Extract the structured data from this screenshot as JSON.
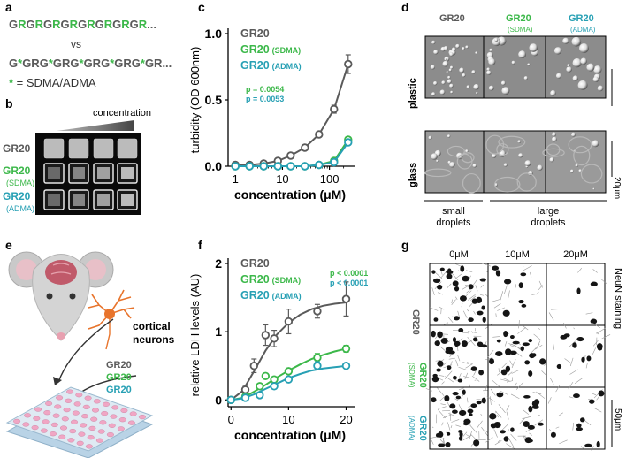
{
  "colors": {
    "gr20": "#5a5a5a",
    "sdma": "#3cb84a",
    "adma": "#27a0b4",
    "brain": "#c05a6a",
    "neuron": "#e8742c",
    "plate": "#f0a6c4"
  },
  "panel_a": {
    "letter": "a",
    "seq1_parts": [
      {
        "t": "G",
        "c": "gr20"
      },
      {
        "t": "R",
        "c": "sdma"
      },
      {
        "t": "G",
        "c": "gr20"
      },
      {
        "t": "R",
        "c": "sdma"
      },
      {
        "t": "G",
        "c": "gr20"
      },
      {
        "t": "R",
        "c": "sdma"
      },
      {
        "t": "G",
        "c": "gr20"
      },
      {
        "t": "R",
        "c": "sdma"
      },
      {
        "t": "G",
        "c": "gr20"
      },
      {
        "t": "R",
        "c": "sdma"
      },
      {
        "t": "G",
        "c": "gr20"
      },
      {
        "t": "R",
        "c": "sdma"
      },
      {
        "t": "G",
        "c": "gr20"
      },
      {
        "t": "R",
        "c": "sdma"
      },
      {
        "t": "G",
        "c": "gr20"
      },
      {
        "t": "R",
        "c": "sdma"
      },
      {
        "t": "...",
        "c": "gr20"
      }
    ],
    "vs": "vs",
    "seq2_parts": [
      {
        "t": "G",
        "c": "gr20"
      },
      {
        "t": "*",
        "c": "sdma"
      },
      {
        "t": "GRG",
        "c": "gr20"
      },
      {
        "t": "*",
        "c": "sdma"
      },
      {
        "t": "GRG",
        "c": "gr20"
      },
      {
        "t": "*",
        "c": "sdma"
      },
      {
        "t": "GRG",
        "c": "gr20"
      },
      {
        "t": "*",
        "c": "sdma"
      },
      {
        "t": "GRG",
        "c": "gr20"
      },
      {
        "t": "*",
        "c": "sdma"
      },
      {
        "t": "GR...",
        "c": "gr20"
      }
    ],
    "legend_star": "*",
    "legend_text": " = SDMA/ADMA"
  },
  "panel_b": {
    "letter": "b",
    "concentration_label": "concentration",
    "rows": [
      {
        "name": "GR20",
        "sub": "",
        "color": "gr20"
      },
      {
        "name": "GR20",
        "sub": "(SDMA)",
        "color": "sdma"
      },
      {
        "name": "GR20",
        "sub": "(ADMA)",
        "color": "adma"
      }
    ]
  },
  "panel_c": {
    "letter": "c",
    "p_sdma": "p = 0.0054",
    "p_adma": "p = 0.0053"
  },
  "panel_d": {
    "letter": "d",
    "columns": [
      {
        "name": "GR20",
        "sub": "",
        "color": "gr20"
      },
      {
        "name": "GR20",
        "sub": "(SDMA)",
        "color": "sdma"
      },
      {
        "name": "GR20",
        "sub": "(ADMA)",
        "color": "adma"
      }
    ],
    "rows": [
      "plastic",
      "glass"
    ],
    "scale": "20μm",
    "bottom_left": [
      "small",
      "droplets"
    ],
    "bottom_right": [
      "large",
      "droplets"
    ]
  },
  "panel_e": {
    "letter": "e",
    "neurons_label": [
      "cortical",
      "neurons"
    ],
    "labels": [
      {
        "name": "GR20",
        "color": "gr20"
      },
      {
        "name": "GR20",
        "color": "sdma"
      },
      {
        "name": "GR20",
        "color": "adma"
      }
    ]
  },
  "panel_f": {
    "letter": "f",
    "p_sdma": "p < 0.0001",
    "p_adma": "p < 0.0001"
  },
  "panel_g": {
    "letter": "g",
    "columns": [
      "0μM",
      "10μM",
      "20μM"
    ],
    "rows": [
      {
        "name": "GR20",
        "sub": "",
        "color": "gr20"
      },
      {
        "name": "GR20",
        "sub": "(SDMA)",
        "color": "sdma"
      },
      {
        "name": "GR20",
        "sub": "(ADMA)",
        "color": "adma"
      }
    ],
    "stain": "NeuN staining",
    "scale": "50μm"
  },
  "chart_data": [
    {
      "type": "line",
      "panel": "c",
      "title": "",
      "xlabel": "concentration (μM)",
      "ylabel": "turbidity (OD 600nm)",
      "xscale": "log",
      "xlim": [
        0.7,
        300
      ],
      "ylim": [
        0,
        1.0
      ],
      "xticks": [
        1,
        10,
        100
      ],
      "xtick_labels": [
        "1",
        "10",
        "100"
      ],
      "yticks": [
        0,
        0.5,
        1.0
      ],
      "ytick_labels": [
        "0.0",
        "0.5",
        "1.0"
      ],
      "legend": [
        {
          "name": "GR20",
          "sub": "",
          "color": "gr20"
        },
        {
          "name": "GR20",
          "sub": "(SDMA)",
          "color": "sdma"
        },
        {
          "name": "GR20",
          "sub": "(ADMA)",
          "color": "adma"
        }
      ],
      "series": [
        {
          "name": "GR20",
          "color": "gr20",
          "x": [
            1,
            2,
            4,
            8,
            15,
            30,
            60,
            125,
            250
          ],
          "y": [
            0.01,
            0.01,
            0.02,
            0.04,
            0.08,
            0.14,
            0.24,
            0.43,
            0.77
          ],
          "err": [
            0,
            0,
            0,
            0,
            0.01,
            0.01,
            0.02,
            0.03,
            0.07
          ]
        },
        {
          "name": "GR20 (SDMA)",
          "color": "sdma",
          "x": [
            1,
            2,
            4,
            8,
            15,
            30,
            60,
            125,
            250
          ],
          "y": [
            0.0,
            0.0,
            0.0,
            0.0,
            0.0,
            0.0,
            0.01,
            0.04,
            0.2
          ],
          "err": [
            0,
            0,
            0,
            0,
            0,
            0,
            0,
            0.01,
            0.02
          ]
        },
        {
          "name": "GR20 (ADMA)",
          "color": "adma",
          "x": [
            1,
            2,
            4,
            8,
            15,
            30,
            60,
            125,
            250
          ],
          "y": [
            0.0,
            0.0,
            0.0,
            0.0,
            0.0,
            0.0,
            0.01,
            0.03,
            0.18
          ],
          "err": [
            0,
            0,
            0,
            0,
            0,
            0,
            0,
            0.01,
            0.02
          ]
        }
      ]
    },
    {
      "type": "line",
      "panel": "f",
      "title": "",
      "xlabel": "concentration (μM)",
      "ylabel": "relative LDH levels (AU)",
      "xscale": "linear",
      "xlim": [
        -0.5,
        21
      ],
      "ylim": [
        -0.1,
        2.0
      ],
      "xticks": [
        0,
        10,
        20
      ],
      "xtick_labels": [
        "0",
        "10",
        "20"
      ],
      "yticks": [
        0,
        1,
        2
      ],
      "ytick_labels": [
        "0",
        "1",
        "2"
      ],
      "legend": [
        {
          "name": "GR20",
          "sub": "",
          "color": "gr20"
        },
        {
          "name": "GR20",
          "sub": "(SDMA)",
          "color": "sdma"
        },
        {
          "name": "GR20",
          "sub": "(ADMA)",
          "color": "adma"
        }
      ],
      "series": [
        {
          "name": "GR20",
          "color": "gr20",
          "x": [
            0,
            2.5,
            4,
            6,
            7.5,
            10,
            15,
            20
          ],
          "y": [
            0.0,
            0.15,
            0.5,
            0.95,
            0.9,
            1.15,
            1.3,
            1.48
          ],
          "err": [
            0,
            0.05,
            0.1,
            0.15,
            0.12,
            0.18,
            0.1,
            0.25
          ],
          "fit": [
            [
              0,
              0
            ],
            [
              2,
              0.13
            ],
            [
              4,
              0.42
            ],
            [
              6,
              0.72
            ],
            [
              8,
              0.96
            ],
            [
              10,
              1.13
            ],
            [
              12,
              1.25
            ],
            [
              14,
              1.33
            ],
            [
              16,
              1.38
            ],
            [
              18,
              1.41
            ],
            [
              20,
              1.43
            ]
          ]
        },
        {
          "name": "GR20 (SDMA)",
          "color": "sdma",
          "x": [
            0,
            2.5,
            5,
            6,
            7.5,
            10,
            15,
            20
          ],
          "y": [
            0.0,
            0.05,
            0.2,
            0.35,
            0.3,
            0.42,
            0.62,
            0.75
          ],
          "err": [
            0,
            0.02,
            0.03,
            0.03,
            0.03,
            0.04,
            0.06,
            0.05
          ],
          "fit": [
            [
              0,
              0
            ],
            [
              2,
              0.03
            ],
            [
              4,
              0.12
            ],
            [
              6,
              0.22
            ],
            [
              8,
              0.33
            ],
            [
              10,
              0.43
            ],
            [
              12,
              0.52
            ],
            [
              14,
              0.6
            ],
            [
              16,
              0.66
            ],
            [
              18,
              0.71
            ],
            [
              20,
              0.75
            ]
          ]
        },
        {
          "name": "GR20 (ADMA)",
          "color": "adma",
          "x": [
            0,
            2.5,
            5,
            7.5,
            10,
            15,
            20
          ],
          "y": [
            0.0,
            0.03,
            0.07,
            0.2,
            0.3,
            0.5,
            0.5
          ],
          "err": [
            0,
            0.02,
            0.02,
            0.03,
            0.03,
            0.06,
            0.03
          ],
          "fit": [
            [
              0,
              0
            ],
            [
              2,
              0.02
            ],
            [
              4,
              0.08
            ],
            [
              6,
              0.16
            ],
            [
              8,
              0.24
            ],
            [
              10,
              0.32
            ],
            [
              12,
              0.38
            ],
            [
              14,
              0.43
            ],
            [
              16,
              0.46
            ],
            [
              18,
              0.48
            ],
            [
              20,
              0.5
            ]
          ]
        }
      ]
    }
  ]
}
